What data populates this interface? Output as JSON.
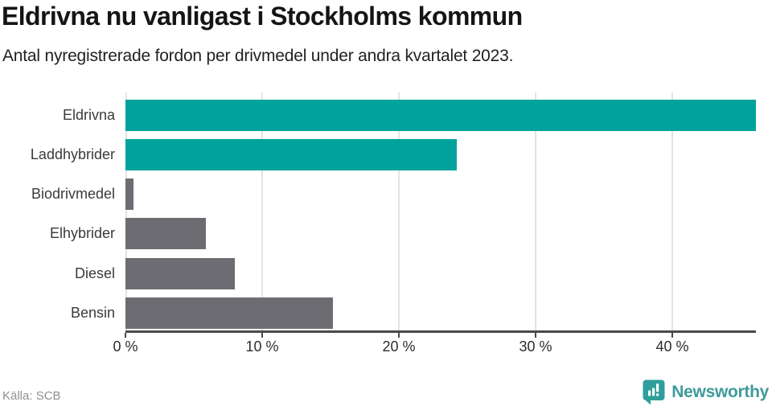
{
  "header": {
    "title": "Eldrivna nu vanligast i Stockholms kommun",
    "subtitle": "Antal nyregistrerade fordon per drivmedel under andra kvartalet 2023."
  },
  "chart_data": {
    "type": "bar",
    "orientation": "horizontal",
    "title": "Eldrivna nu vanligast i Stockholms kommun",
    "subtitle": "Antal nyregistrerade fordon per drivmedel under andra kvartalet 2023.",
    "categories": [
      "Eldrivna",
      "Laddhybrider",
      "Biodrivmedel",
      "Elhybrider",
      "Diesel",
      "Bensin"
    ],
    "values": [
      46.1,
      24.2,
      0.6,
      5.9,
      8.0,
      15.2
    ],
    "unit": "%",
    "xlim": [
      0,
      46.1
    ],
    "xticks": [
      0,
      10,
      20,
      30,
      40
    ],
    "xtick_labels": [
      "0 %",
      "10 %",
      "20 %",
      "30 %",
      "40 %"
    ],
    "grid": true,
    "legend": false,
    "bar_colors": [
      "#00a39b",
      "#00a39b",
      "#6c6c72",
      "#6c6c72",
      "#6c6c72",
      "#6c6c72"
    ]
  },
  "colors": {
    "accent_teal": "#00a39b",
    "neutral_gray": "#6c6c72",
    "axis_line": "#4a4a4c",
    "gridline": "#e3e3e3",
    "brand_teal": "#3f9a9b"
  },
  "footer": {
    "source": "Källa: SCB",
    "brand": "Newsworthy"
  }
}
